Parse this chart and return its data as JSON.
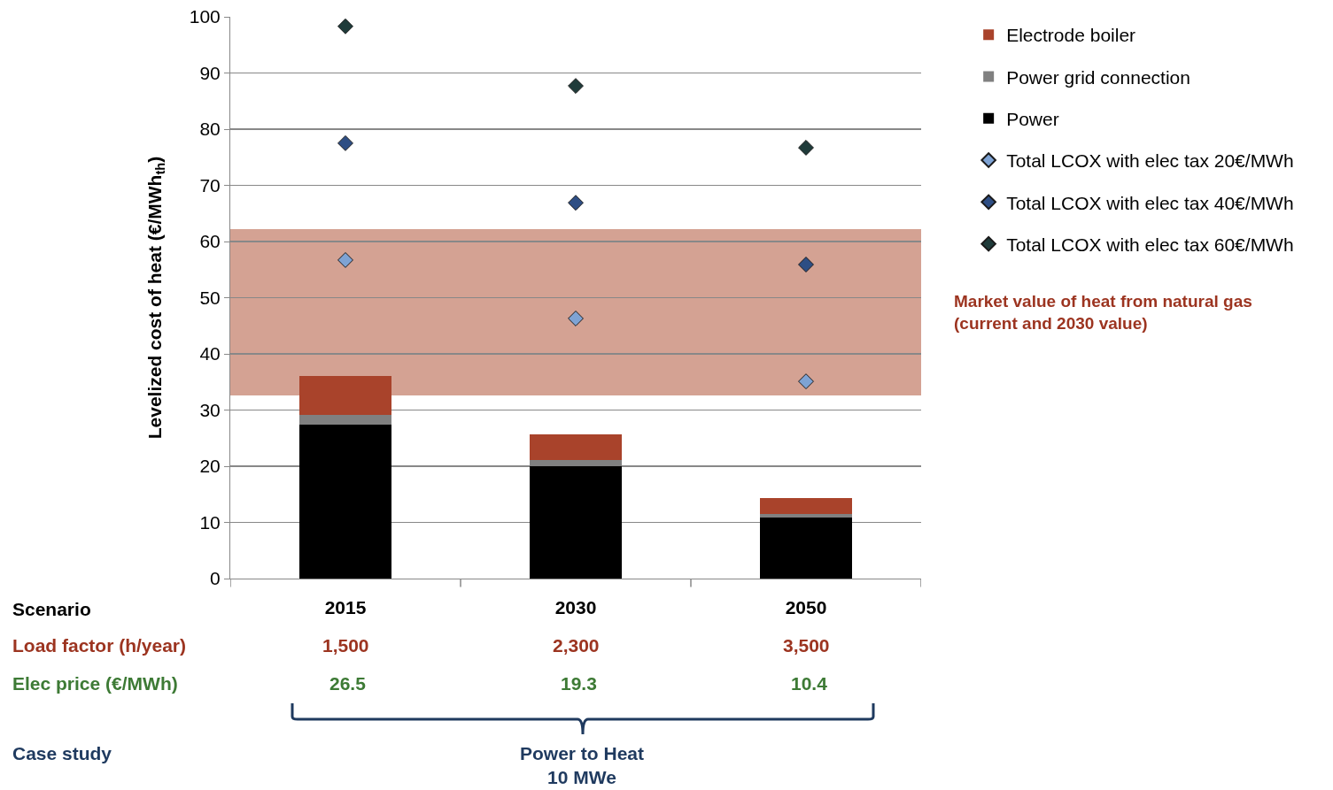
{
  "chart_data": {
    "type": "bar",
    "stacked": true,
    "ylabel": "Levelized cost of heat (€/MWh$_{th}$)",
    "categories": [
      "2015",
      "2030",
      "2050"
    ],
    "series": [
      {
        "name": "Power",
        "color": "#000000",
        "values": [
          27.4,
          20.0,
          10.9
        ]
      },
      {
        "name": "Power grid connection",
        "color": "#808080",
        "values": [
          1.7,
          1.1,
          0.6
        ]
      },
      {
        "name": "Electrode boiler",
        "color": "#a9432b",
        "values": [
          7.0,
          4.6,
          2.8
        ]
      },
      {
        "name": "Total LCOX with elec tax 20€/MWh",
        "type": "scatter",
        "color": "#7ea3d4",
        "values": [
          56.7,
          46.3,
          35.1
        ]
      },
      {
        "name": "Total LCOX with elec tax 40€/MWh",
        "type": "scatter",
        "color": "#2e4e84",
        "values": [
          77.5,
          66.9,
          55.9
        ]
      },
      {
        "name": "Total LCOX with elec tax 60€/MWh",
        "type": "scatter",
        "color": "#1f3b3a",
        "values": [
          98.3,
          87.7,
          76.7
        ]
      }
    ],
    "marker": "diamond",
    "ylim": [
      0,
      100
    ],
    "yticks": [
      0,
      10,
      20,
      30,
      40,
      50,
      60,
      70,
      80,
      90,
      100
    ],
    "grid": "y",
    "legend": "top right",
    "bands": [
      {
        "axis": "y",
        "from": 32.6,
        "to": 62.2,
        "color": "#d4a293",
        "label": "Market value of heat from natural gas\n(current and 2030 value)"
      }
    ],
    "annotations": [
      "Scenario",
      "Load factor (h/year)",
      "1,500",
      "2,300",
      "3,500",
      "Elec price (€/MWh)",
      "26.5",
      "19.3",
      "10.4",
      "Case study",
      "Power to Heat\n10 MWe"
    ]
  }
}
